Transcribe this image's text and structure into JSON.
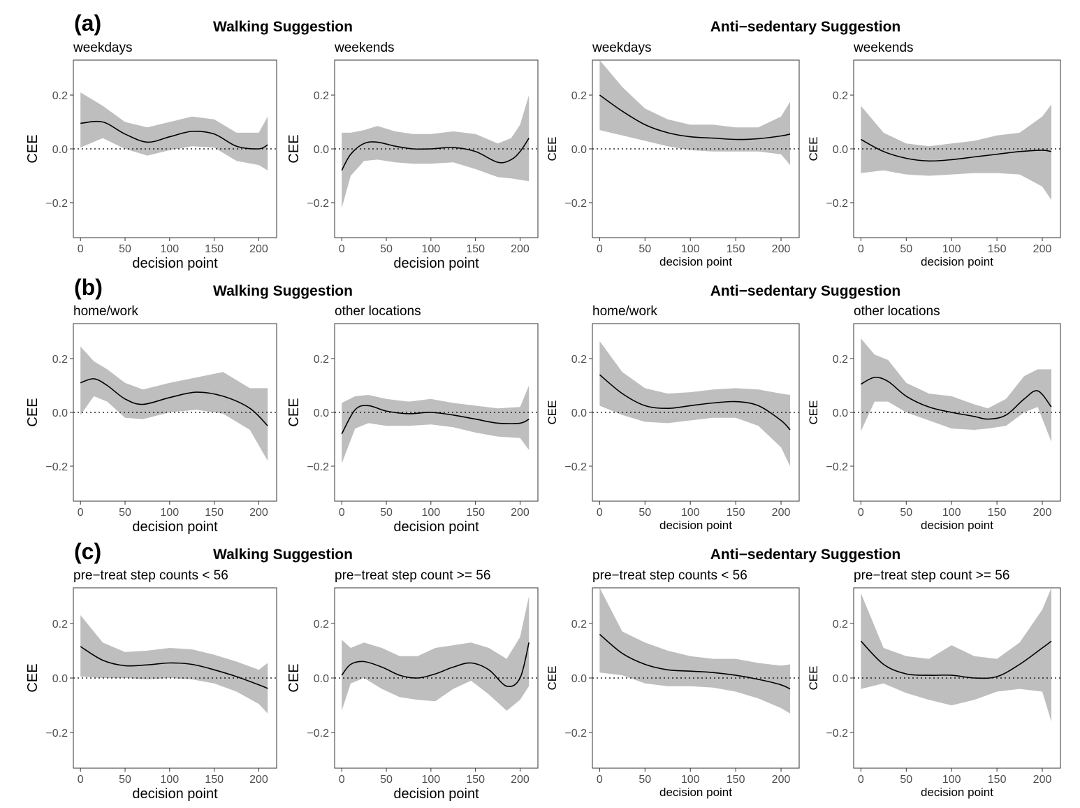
{
  "figure": {
    "row_tags": [
      "(a)",
      "(b)",
      "(c)"
    ],
    "group_titles": [
      "Walking Suggestion",
      "Anti−sedentary Suggestion"
    ],
    "xlabel": "decision point",
    "ylabel": "CEE",
    "x_ticks": [
      0,
      50,
      100,
      150,
      200
    ],
    "y_ticks": [
      -0.2,
      0.0,
      0.2
    ],
    "y_tick_labels": [
      "−0.2",
      "0.0",
      "0.2"
    ]
  },
  "chart_data": [
    {
      "type": "line",
      "title": "weekdays",
      "row": "(a)",
      "group": "Walking Suggestion",
      "xlabel": "decision point",
      "ylabel": "CEE",
      "xlim": [
        -8,
        220
      ],
      "ylim": [
        -0.33,
        0.33
      ],
      "reference_line": 0,
      "x": [
        0,
        25,
        50,
        75,
        100,
        125,
        150,
        175,
        200,
        210
      ],
      "y": [
        0.095,
        0.1,
        0.055,
        0.025,
        0.045,
        0.065,
        0.055,
        0.01,
        0.0,
        0.015
      ],
      "lower": [
        0.005,
        0.04,
        0.0,
        -0.025,
        -0.005,
        0.01,
        0.005,
        -0.045,
        -0.06,
        -0.08
      ],
      "upper": [
        0.21,
        0.16,
        0.1,
        0.08,
        0.1,
        0.12,
        0.11,
        0.06,
        0.06,
        0.12
      ]
    },
    {
      "type": "line",
      "title": "weekends",
      "row": "(a)",
      "group": "Walking Suggestion",
      "xlabel": "decision point",
      "ylabel": "CEE",
      "xlim": [
        -8,
        220
      ],
      "ylim": [
        -0.33,
        0.33
      ],
      "reference_line": 0,
      "x": [
        0,
        10,
        25,
        40,
        60,
        80,
        100,
        125,
        150,
        175,
        190,
        200,
        210
      ],
      "y": [
        -0.08,
        -0.02,
        0.02,
        0.025,
        0.01,
        0.0,
        0.0,
        0.005,
        -0.01,
        -0.05,
        -0.04,
        -0.01,
        0.04
      ],
      "lower": [
        -0.22,
        -0.1,
        -0.045,
        -0.04,
        -0.05,
        -0.055,
        -0.055,
        -0.05,
        -0.075,
        -0.105,
        -0.11,
        -0.115,
        -0.12
      ],
      "upper": [
        0.06,
        0.06,
        0.07,
        0.085,
        0.065,
        0.055,
        0.055,
        0.065,
        0.055,
        0.02,
        0.04,
        0.09,
        0.2
      ]
    },
    {
      "type": "line",
      "title": "weekdays",
      "row": "(a)",
      "group": "Anti−sedentary Suggestion",
      "xlabel": "decision point",
      "ylabel": "CEE",
      "xlim": [
        -8,
        220
      ],
      "ylim": [
        -0.33,
        0.33
      ],
      "reference_line": 0,
      "x": [
        0,
        25,
        50,
        75,
        100,
        125,
        150,
        175,
        200,
        210
      ],
      "y": [
        0.2,
        0.14,
        0.09,
        0.06,
        0.045,
        0.04,
        0.035,
        0.038,
        0.048,
        0.055
      ],
      "lower": [
        0.07,
        0.05,
        0.03,
        0.01,
        -0.005,
        -0.01,
        -0.01,
        -0.01,
        -0.02,
        -0.06
      ],
      "upper": [
        0.33,
        0.23,
        0.15,
        0.11,
        0.09,
        0.09,
        0.08,
        0.08,
        0.12,
        0.175
      ]
    },
    {
      "type": "line",
      "title": "weekends",
      "row": "(a)",
      "group": "Anti−sedentary Suggestion",
      "xlabel": "decision point",
      "ylabel": "CEE",
      "xlim": [
        -8,
        220
      ],
      "ylim": [
        -0.33,
        0.33
      ],
      "reference_line": 0,
      "x": [
        0,
        25,
        50,
        75,
        100,
        125,
        150,
        175,
        200,
        210
      ],
      "y": [
        0.035,
        -0.01,
        -0.035,
        -0.045,
        -0.04,
        -0.03,
        -0.02,
        -0.01,
        -0.005,
        -0.01
      ],
      "lower": [
        -0.09,
        -0.08,
        -0.095,
        -0.1,
        -0.095,
        -0.09,
        -0.09,
        -0.095,
        -0.14,
        -0.19
      ],
      "upper": [
        0.16,
        0.06,
        0.02,
        0.01,
        0.02,
        0.03,
        0.05,
        0.06,
        0.12,
        0.165
      ]
    },
    {
      "type": "line",
      "title": "home/work",
      "row": "(b)",
      "group": "Walking Suggestion",
      "xlabel": "decision point",
      "ylabel": "CEE",
      "xlim": [
        -8,
        220
      ],
      "ylim": [
        -0.33,
        0.33
      ],
      "reference_line": 0,
      "x": [
        0,
        15,
        30,
        50,
        70,
        100,
        130,
        160,
        190,
        210
      ],
      "y": [
        0.11,
        0.125,
        0.1,
        0.05,
        0.03,
        0.055,
        0.075,
        0.06,
        0.015,
        -0.05
      ],
      "lower": [
        -0.01,
        0.06,
        0.04,
        -0.02,
        -0.025,
        0.0,
        0.01,
        -0.005,
        -0.065,
        -0.18
      ],
      "upper": [
        0.245,
        0.19,
        0.16,
        0.11,
        0.085,
        0.11,
        0.13,
        0.15,
        0.09,
        0.09
      ]
    },
    {
      "type": "line",
      "title": "other locations",
      "row": "(b)",
      "group": "Walking Suggestion",
      "xlabel": "decision point",
      "ylabel": "CEE",
      "xlim": [
        -8,
        220
      ],
      "ylim": [
        -0.33,
        0.33
      ],
      "reference_line": 0,
      "x": [
        0,
        15,
        30,
        50,
        75,
        100,
        125,
        150,
        175,
        200,
        210
      ],
      "y": [
        -0.08,
        0.01,
        0.025,
        0.005,
        -0.005,
        0.0,
        -0.01,
        -0.025,
        -0.04,
        -0.04,
        -0.025
      ],
      "lower": [
        -0.19,
        -0.06,
        -0.04,
        -0.05,
        -0.05,
        -0.045,
        -0.055,
        -0.075,
        -0.09,
        -0.095,
        -0.14
      ],
      "upper": [
        0.035,
        0.06,
        0.065,
        0.05,
        0.04,
        0.05,
        0.035,
        0.025,
        0.015,
        0.02,
        0.1
      ]
    },
    {
      "type": "line",
      "title": "home/work",
      "row": "(b)",
      "group": "Anti−sedentary Suggestion",
      "xlabel": "decision point",
      "ylabel": "CEE",
      "xlim": [
        -8,
        220
      ],
      "ylim": [
        -0.33,
        0.33
      ],
      "reference_line": 0,
      "x": [
        0,
        25,
        50,
        75,
        100,
        125,
        150,
        175,
        200,
        210
      ],
      "y": [
        0.14,
        0.07,
        0.025,
        0.015,
        0.025,
        0.035,
        0.04,
        0.025,
        -0.03,
        -0.065
      ],
      "lower": [
        0.025,
        -0.01,
        -0.035,
        -0.04,
        -0.03,
        -0.02,
        -0.02,
        -0.05,
        -0.13,
        -0.2
      ],
      "upper": [
        0.265,
        0.15,
        0.09,
        0.07,
        0.075,
        0.085,
        0.09,
        0.085,
        0.07,
        0.065
      ]
    },
    {
      "type": "line",
      "title": "other locations",
      "row": "(b)",
      "group": "Anti−sedentary Suggestion",
      "xlabel": "decision point",
      "ylabel": "CEE",
      "xlim": [
        -8,
        220
      ],
      "ylim": [
        -0.33,
        0.33
      ],
      "reference_line": 0,
      "x": [
        0,
        15,
        30,
        50,
        75,
        100,
        125,
        140,
        160,
        180,
        195,
        210
      ],
      "y": [
        0.105,
        0.13,
        0.115,
        0.06,
        0.02,
        0.0,
        -0.015,
        -0.025,
        -0.01,
        0.05,
        0.08,
        0.02
      ],
      "lower": [
        -0.07,
        0.04,
        0.04,
        0.0,
        -0.03,
        -0.06,
        -0.065,
        -0.06,
        -0.05,
        0.0,
        0.02,
        -0.11
      ],
      "upper": [
        0.275,
        0.215,
        0.195,
        0.11,
        0.07,
        0.06,
        0.03,
        0.015,
        0.05,
        0.135,
        0.16,
        0.16
      ]
    },
    {
      "type": "line",
      "title": "pre−treat step counts < 56",
      "row": "(c)",
      "group": "Walking Suggestion",
      "xlabel": "decision point",
      "ylabel": "CEE",
      "xlim": [
        -8,
        220
      ],
      "ylim": [
        -0.33,
        0.33
      ],
      "reference_line": 0,
      "x": [
        0,
        25,
        50,
        75,
        100,
        125,
        150,
        175,
        200,
        210
      ],
      "y": [
        0.115,
        0.065,
        0.045,
        0.048,
        0.055,
        0.05,
        0.03,
        0.005,
        -0.025,
        -0.038
      ],
      "lower": [
        0.005,
        0.0,
        0.0,
        -0.005,
        0.0,
        -0.005,
        -0.02,
        -0.05,
        -0.095,
        -0.13
      ],
      "upper": [
        0.23,
        0.13,
        0.095,
        0.1,
        0.11,
        0.105,
        0.085,
        0.06,
        0.03,
        0.055
      ]
    },
    {
      "type": "line",
      "title": "pre−treat step count >= 56",
      "row": "(c)",
      "group": "Walking Suggestion",
      "xlabel": "decision point",
      "ylabel": "CEE",
      "xlim": [
        -8,
        220
      ],
      "ylim": [
        -0.33,
        0.33
      ],
      "reference_line": 0,
      "x": [
        0,
        10,
        25,
        45,
        65,
        85,
        105,
        125,
        145,
        165,
        185,
        200,
        210
      ],
      "y": [
        0.01,
        0.05,
        0.06,
        0.04,
        0.01,
        0.0,
        0.015,
        0.04,
        0.055,
        0.03,
        -0.03,
        0.0,
        0.13
      ],
      "lower": [
        -0.12,
        -0.02,
        0.0,
        -0.04,
        -0.07,
        -0.08,
        -0.085,
        -0.04,
        -0.01,
        -0.06,
        -0.12,
        -0.08,
        -0.03
      ],
      "upper": [
        0.14,
        0.11,
        0.13,
        0.11,
        0.08,
        0.08,
        0.11,
        0.12,
        0.13,
        0.11,
        0.07,
        0.15,
        0.3
      ]
    },
    {
      "type": "line",
      "title": "pre−treat step counts < 56",
      "row": "(c)",
      "group": "Anti−sedentary Suggestion",
      "xlabel": "decision point",
      "ylabel": "CEE",
      "xlim": [
        -8,
        220
      ],
      "ylim": [
        -0.33,
        0.33
      ],
      "reference_line": 0,
      "x": [
        0,
        25,
        50,
        75,
        100,
        125,
        150,
        175,
        200,
        210
      ],
      "y": [
        0.16,
        0.09,
        0.05,
        0.03,
        0.025,
        0.02,
        0.01,
        -0.005,
        -0.025,
        -0.04
      ],
      "lower": [
        0.02,
        0.01,
        -0.02,
        -0.03,
        -0.03,
        -0.035,
        -0.05,
        -0.075,
        -0.11,
        -0.13
      ],
      "upper": [
        0.33,
        0.17,
        0.13,
        0.1,
        0.08,
        0.07,
        0.07,
        0.055,
        0.045,
        0.05
      ]
    },
    {
      "type": "line",
      "title": "pre−treat step count >= 56",
      "row": "(c)",
      "group": "Anti−sedentary Suggestion",
      "xlabel": "decision point",
      "ylabel": "CEE",
      "xlim": [
        -8,
        220
      ],
      "ylim": [
        -0.33,
        0.33
      ],
      "reference_line": 0,
      "x": [
        0,
        25,
        50,
        75,
        100,
        125,
        150,
        175,
        200,
        210
      ],
      "y": [
        0.135,
        0.05,
        0.015,
        0.01,
        0.01,
        0.0,
        0.005,
        0.05,
        0.11,
        0.135
      ],
      "lower": [
        -0.04,
        -0.02,
        -0.055,
        -0.08,
        -0.1,
        -0.08,
        -0.05,
        -0.04,
        -0.05,
        -0.16
      ],
      "upper": [
        0.31,
        0.11,
        0.08,
        0.07,
        0.12,
        0.08,
        0.07,
        0.13,
        0.25,
        0.33
      ]
    }
  ]
}
